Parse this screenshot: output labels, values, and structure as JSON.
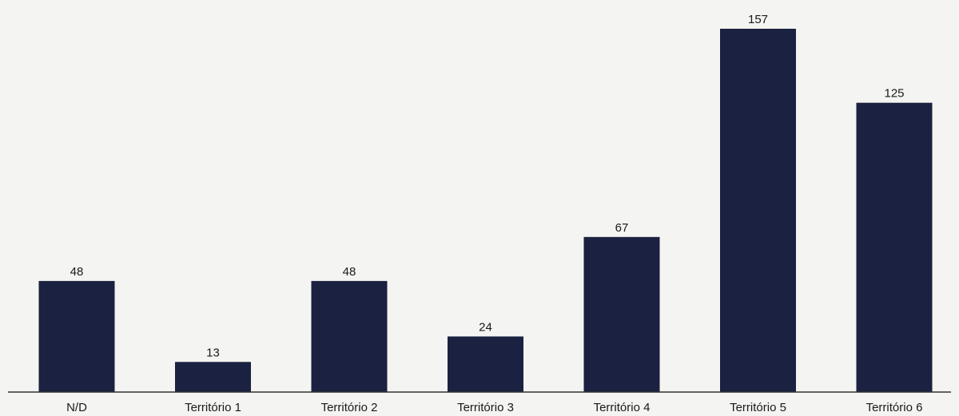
{
  "chart_data": {
    "type": "bar",
    "categories": [
      "N/D",
      "Território 1",
      "Território 2",
      "Território 3",
      "Território 4",
      "Território 5",
      "Território 6"
    ],
    "values": [
      48,
      13,
      48,
      24,
      67,
      157,
      125
    ],
    "title": "",
    "xlabel": "",
    "ylabel": "",
    "ylim": [
      0,
      157
    ],
    "grid": false,
    "legend": "none",
    "data_labels": true,
    "colors": {
      "bar": "#1b2140",
      "axis": "#333333",
      "text": "#1a1a1a",
      "background": "#f4f4f2"
    }
  }
}
